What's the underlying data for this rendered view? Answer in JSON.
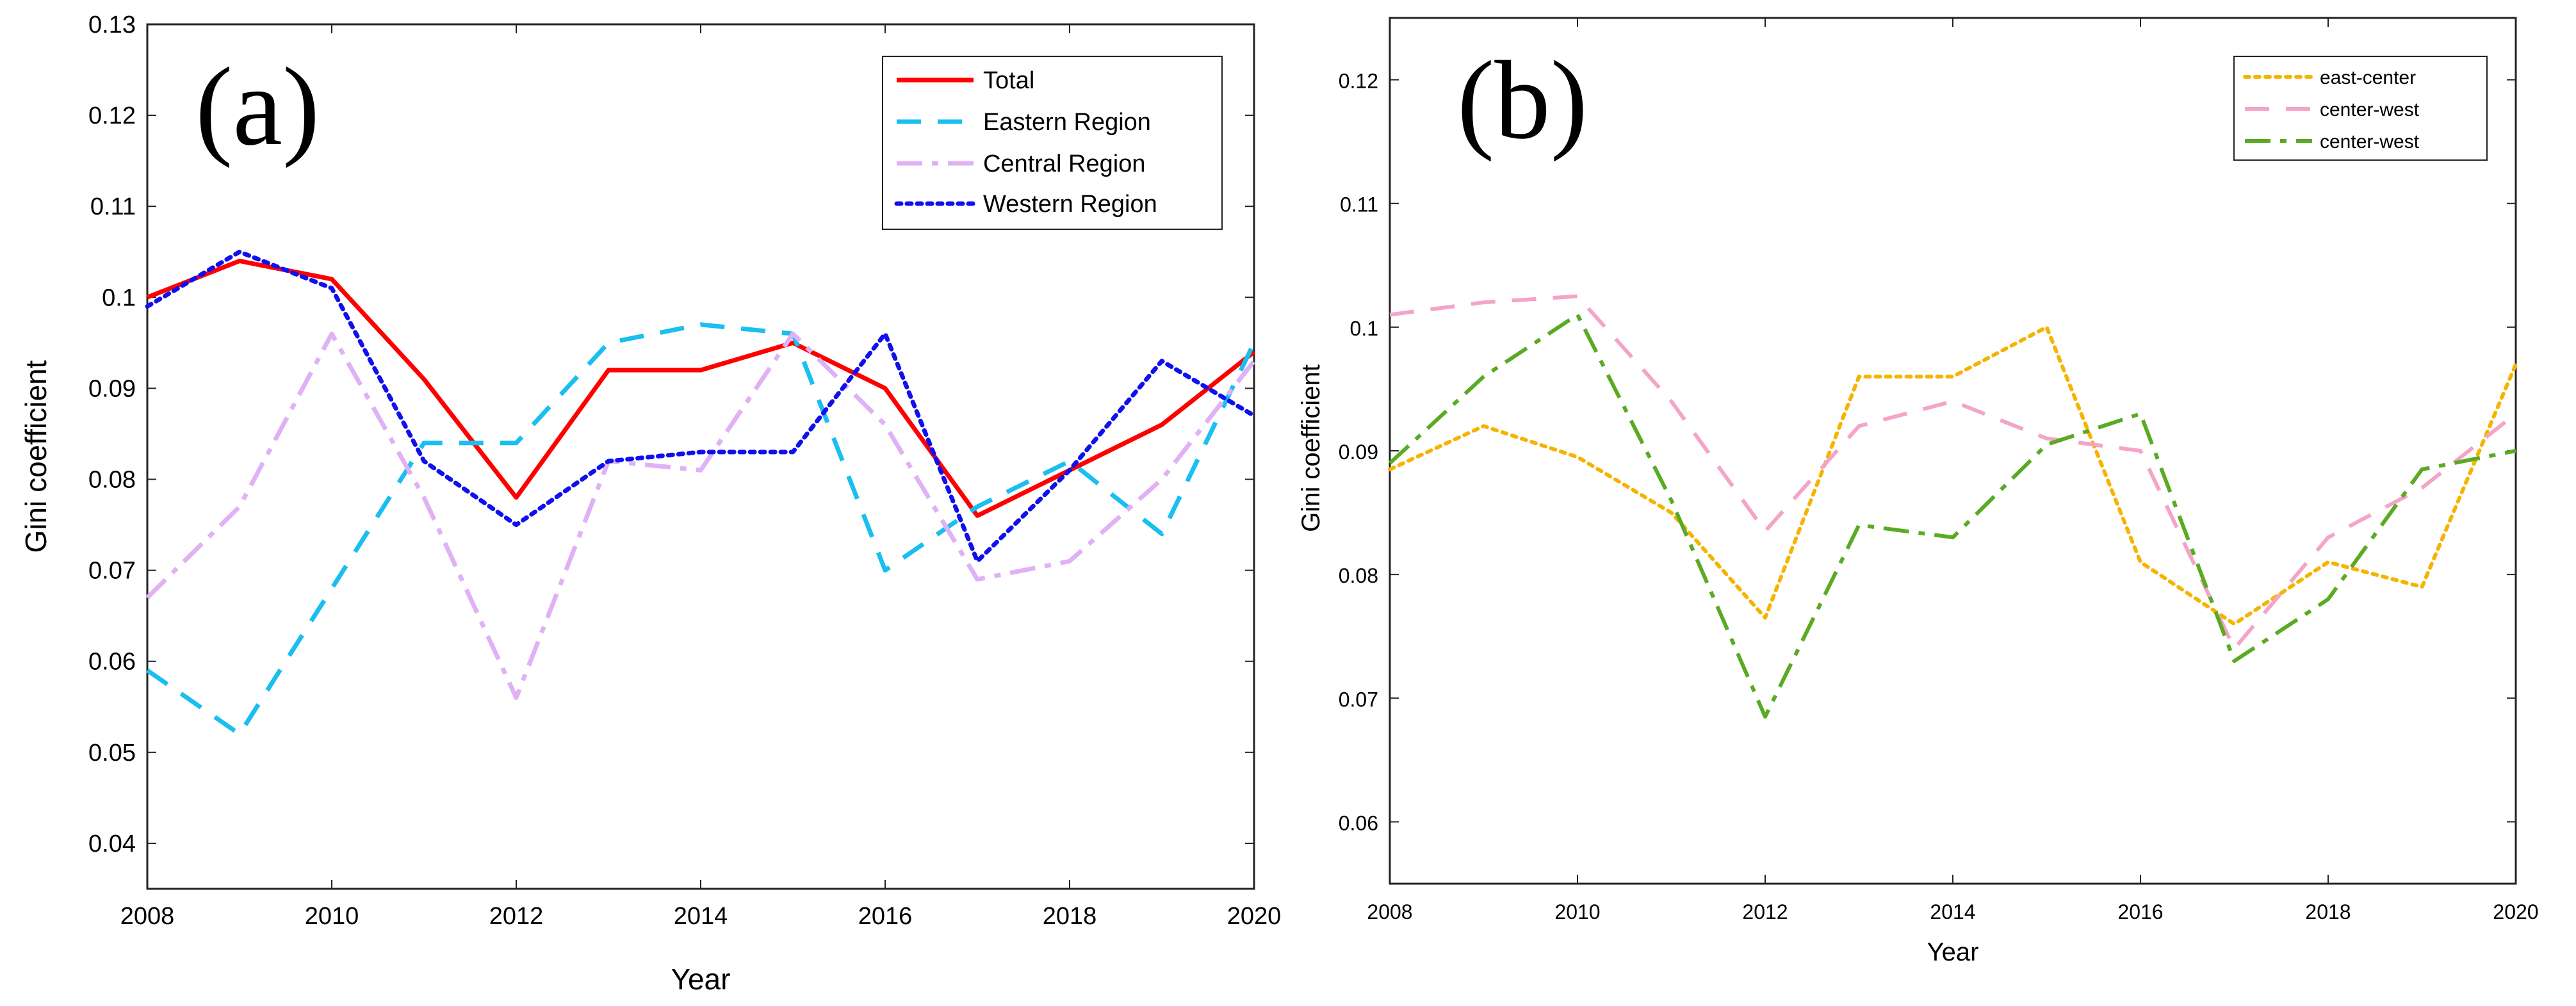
{
  "chart_data": [
    {
      "panel": "(a)",
      "type": "line",
      "xlabel": "Year",
      "ylabel": "Gini coefficient",
      "xlim": [
        2008,
        2020
      ],
      "ylim": [
        0.035,
        0.13
      ],
      "xticks": [
        2008,
        2010,
        2012,
        2014,
        2016,
        2018,
        2020
      ],
      "yticks": [
        0.04,
        0.05,
        0.06,
        0.07,
        0.08,
        0.09,
        0.1,
        0.11,
        0.12,
        0.13
      ],
      "ytick_labels": [
        "0.04",
        "0.05",
        "0.06",
        "0.07",
        "0.08",
        "0.09",
        "0.1",
        "0.11",
        "0.12",
        "0.13"
      ],
      "legend_position": "top-right",
      "x": [
        2008,
        2009,
        2010,
        2011,
        2012,
        2013,
        2014,
        2015,
        2016,
        2017,
        2018,
        2019,
        2020
      ],
      "series": [
        {
          "name": "Total",
          "color": "#ff0000",
          "style": "solid",
          "values": [
            0.1,
            0.104,
            0.102,
            0.091,
            0.078,
            0.092,
            0.092,
            0.095,
            0.09,
            0.076,
            0.081,
            0.086,
            0.094
          ]
        },
        {
          "name": "Eastern Region",
          "color": "#19bff0",
          "style": "dashed",
          "values": [
            0.059,
            0.052,
            0.068,
            0.084,
            0.084,
            0.095,
            0.097,
            0.096,
            0.07,
            0.077,
            0.082,
            0.074,
            0.095
          ]
        },
        {
          "name": "Central Region",
          "color": "#e0b1f5",
          "style": "dashdot",
          "values": [
            0.067,
            0.077,
            0.096,
            0.078,
            0.056,
            0.082,
            0.081,
            0.096,
            0.086,
            0.069,
            0.071,
            0.08,
            0.093
          ]
        },
        {
          "name": "Western Region",
          "color": "#1010ee",
          "style": "dotted",
          "values": [
            0.099,
            0.105,
            0.101,
            0.082,
            0.075,
            0.082,
            0.083,
            0.083,
            0.096,
            0.071,
            0.081,
            0.093,
            0.087
          ]
        }
      ]
    },
    {
      "panel": "(b)",
      "type": "line",
      "xlabel": "Year",
      "ylabel": "Gini coefficient",
      "xlim": [
        2008,
        2020
      ],
      "ylim": [
        0.055,
        0.125
      ],
      "xticks": [
        2008,
        2010,
        2012,
        2014,
        2016,
        2018,
        2020
      ],
      "yticks": [
        0.06,
        0.07,
        0.08,
        0.09,
        0.1,
        0.11,
        0.12
      ],
      "ytick_labels": [
        "0.06",
        "0.07",
        "0.08",
        "0.09",
        "0.1",
        "0.11",
        "0.12"
      ],
      "legend_position": "top-right",
      "x": [
        2008,
        2009,
        2010,
        2011,
        2012,
        2013,
        2014,
        2015,
        2016,
        2017,
        2018,
        2019,
        2020
      ],
      "series": [
        {
          "name": "east-center",
          "color": "#f5b400",
          "style": "dotted",
          "values": [
            0.0885,
            0.092,
            0.0895,
            0.085,
            0.0765,
            0.096,
            0.096,
            0.1,
            0.081,
            0.076,
            0.081,
            0.079,
            0.097
          ]
        },
        {
          "name": "center-west",
          "color": "#f4a4c8",
          "style": "dashed",
          "values": [
            0.101,
            0.102,
            0.1025,
            0.094,
            0.0835,
            0.092,
            0.094,
            0.091,
            0.09,
            0.074,
            0.083,
            0.087,
            0.093
          ]
        },
        {
          "name": "center-west",
          "color": "#5aaa23",
          "style": "dashdot",
          "values": [
            0.089,
            0.096,
            0.101,
            0.086,
            0.0685,
            0.084,
            0.083,
            0.0905,
            0.093,
            0.073,
            0.078,
            0.0885,
            0.09
          ]
        }
      ]
    }
  ]
}
